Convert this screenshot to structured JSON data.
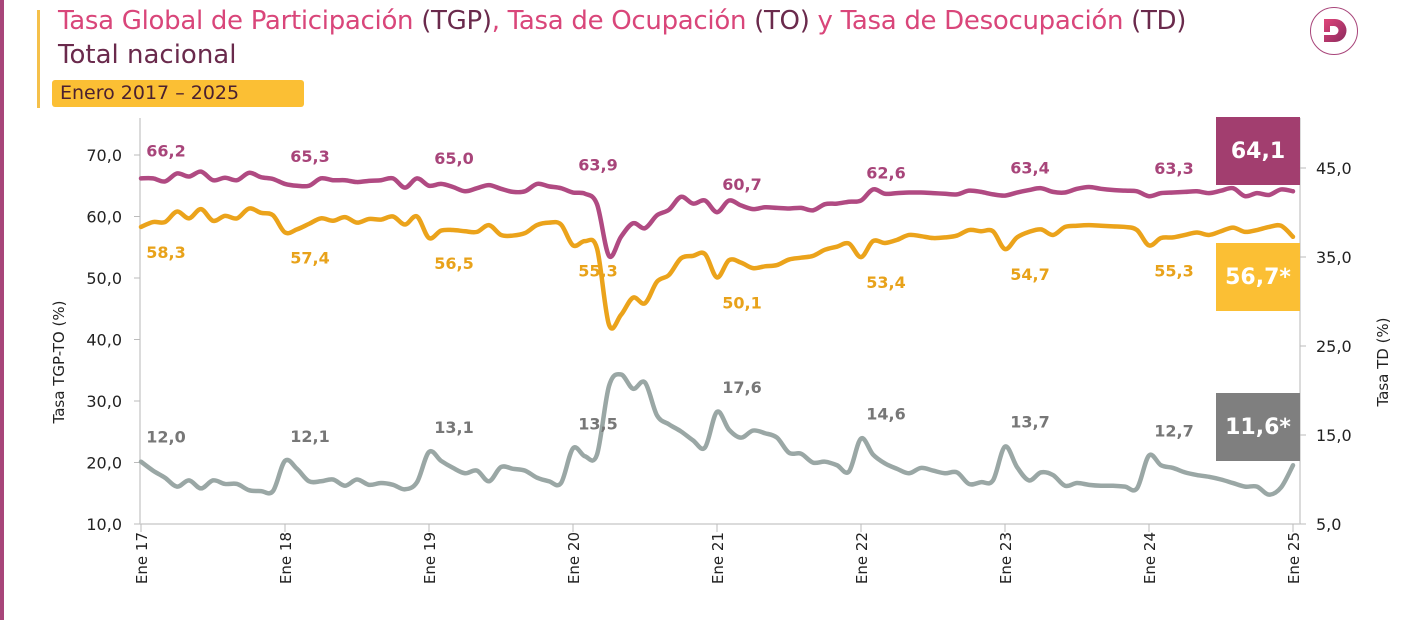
{
  "header": {
    "title_parts": [
      {
        "text": "Tasa Global de Participación",
        "style": "pink"
      },
      {
        "text": " (TGP)",
        "style": "dark"
      },
      {
        "text": ", Tasa de Ocupación",
        "style": "pink"
      },
      {
        "text": " (TO)",
        "style": "dark"
      },
      {
        "text": " y Tasa de Desocupación",
        "style": "pink"
      },
      {
        "text": " (TD)",
        "style": "dark"
      }
    ],
    "subtitle": "Total nacional",
    "period_badge": "Enero 2017 – 2025",
    "logo": "dane-d-logo"
  },
  "colors": {
    "title_pink": "#d9467a",
    "title_dark": "#6a2a4c",
    "badge": "#fbbf34",
    "tgp": "#b04a82",
    "to": "#eba31b",
    "td": "#9aa7a5",
    "tgp_box": "#a23e6f",
    "to_box": "#fbbf34",
    "td_box": "#7f7f7f"
  },
  "chart_data": {
    "type": "line",
    "xlabel": "",
    "x_tick_labels": [
      "Ene 17",
      "Ene 18",
      "Ene 19",
      "Ene 20",
      "Ene 21",
      "Ene 22",
      "Ene 23",
      "Ene 24",
      "Ene 25"
    ],
    "x_range": [
      "2017-01",
      "2025-01"
    ],
    "x_frequency": "monthly",
    "ylabel_left": "Tasa TGP-TO (%)",
    "ylim_left": [
      10,
      70
    ],
    "y_ticks_left": [
      "10,0",
      "20,0",
      "30,0",
      "40,0",
      "50,0",
      "60,0",
      "70,0"
    ],
    "ylabel_right": "Tasa TD (%)",
    "ylim_right": [
      5,
      45
    ],
    "y_ticks_right": [
      "5,0",
      "15,0",
      "25,0",
      "35,0",
      "45,0"
    ],
    "grid": false,
    "legend": "none",
    "series": [
      {
        "key": "tgp",
        "axis": "left",
        "values": [
          66.2,
          66.2,
          65.7,
          67.0,
          66.5,
          67.3,
          65.9,
          66.3,
          65.9,
          67.1,
          66.4,
          66.1,
          65.3,
          65.0,
          65.0,
          66.2,
          65.9,
          65.9,
          65.6,
          65.8,
          65.9,
          66.2,
          64.7,
          66.2,
          65.0,
          65.3,
          64.8,
          64.1,
          64.6,
          65.1,
          64.5,
          64.0,
          64.1,
          65.3,
          64.9,
          64.6,
          63.9,
          63.7,
          62.0,
          53.6,
          56.7,
          58.9,
          58.1,
          60.2,
          61.1,
          63.2,
          62.1,
          62.6,
          60.7,
          62.6,
          61.8,
          61.2,
          61.5,
          61.4,
          61.3,
          61.4,
          61.0,
          62.0,
          62.1,
          62.4,
          62.6,
          64.4,
          63.7,
          63.8,
          63.9,
          63.9,
          63.8,
          63.7,
          63.6,
          64.2,
          64.0,
          63.6,
          63.4,
          63.9,
          64.3,
          64.6,
          64.0,
          63.9,
          64.5,
          64.8,
          64.5,
          64.3,
          64.2,
          64.1,
          63.3,
          63.8,
          63.9,
          64.0,
          64.1,
          63.8,
          64.2,
          64.6,
          63.3,
          63.8,
          63.5,
          64.4,
          64.1
        ],
        "jan_labels": [
          "66,2",
          "65,3",
          "65,0",
          "63,9",
          "60,7",
          "62,6",
          "63,4",
          "63,3"
        ],
        "last_label": "64,1"
      },
      {
        "key": "to",
        "axis": "left",
        "values": [
          58.3,
          59.1,
          59.1,
          60.8,
          59.7,
          61.2,
          59.3,
          60.1,
          59.7,
          61.3,
          60.6,
          60.2,
          57.4,
          57.9,
          58.8,
          59.7,
          59.3,
          59.9,
          59.0,
          59.6,
          59.5,
          60.0,
          58.7,
          60.0,
          56.5,
          57.7,
          57.8,
          57.6,
          57.5,
          58.6,
          57.0,
          56.9,
          57.3,
          58.6,
          59.0,
          58.7,
          55.3,
          56.0,
          54.8,
          42.4,
          44.0,
          46.8,
          45.9,
          49.4,
          50.5,
          53.2,
          53.6,
          53.9,
          50.1,
          52.9,
          52.5,
          51.6,
          51.9,
          52.1,
          53.0,
          53.3,
          53.6,
          54.6,
          55.1,
          55.6,
          53.4,
          56.0,
          55.7,
          56.2,
          57.0,
          56.8,
          56.5,
          56.6,
          56.9,
          57.8,
          57.6,
          57.6,
          54.7,
          56.6,
          57.5,
          57.9,
          57.0,
          58.3,
          58.5,
          58.6,
          58.5,
          58.4,
          58.3,
          57.8,
          55.3,
          56.5,
          56.6,
          57.0,
          57.4,
          57.0,
          57.6,
          58.2,
          57.5,
          57.8,
          58.3,
          58.5,
          56.7
        ],
        "jan_labels": [
          "58,3",
          "57,4",
          "56,5",
          "55,3",
          "50,1",
          "53,4",
          "54,7",
          "55,3"
        ],
        "last_label": "56,7*"
      },
      {
        "key": "td",
        "axis": "right",
        "values": [
          12.0,
          11.0,
          10.2,
          9.2,
          9.9,
          9.0,
          9.9,
          9.5,
          9.5,
          8.8,
          8.7,
          8.7,
          12.1,
          11.2,
          9.8,
          9.8,
          10.0,
          9.3,
          10.0,
          9.4,
          9.6,
          9.4,
          8.9,
          9.7,
          13.1,
          12.1,
          11.3,
          10.7,
          11.0,
          9.8,
          11.4,
          11.2,
          11.0,
          10.2,
          9.8,
          9.6,
          13.5,
          12.6,
          12.8,
          20.5,
          21.8,
          20.2,
          20.9,
          17.2,
          16.2,
          15.4,
          14.4,
          13.6,
          17.6,
          15.6,
          14.7,
          15.5,
          15.2,
          14.7,
          13.0,
          12.9,
          11.9,
          12.0,
          11.6,
          10.9,
          14.6,
          12.8,
          11.8,
          11.2,
          10.7,
          11.3,
          11.0,
          10.7,
          10.8,
          9.5,
          9.7,
          9.9,
          13.7,
          11.4,
          9.9,
          10.8,
          10.5,
          9.3,
          9.6,
          9.4,
          9.3,
          9.3,
          9.2,
          9.0,
          12.7,
          11.6,
          11.3,
          10.8,
          10.5,
          10.3,
          10.0,
          9.6,
          9.2,
          9.2,
          8.3,
          9.1,
          11.6
        ],
        "jan_labels": [
          "12,0",
          "12,1",
          "13,1",
          "13,5",
          "17,6",
          "14,6",
          "13,7",
          "12,7"
        ],
        "last_label": "11,6*"
      }
    ]
  }
}
